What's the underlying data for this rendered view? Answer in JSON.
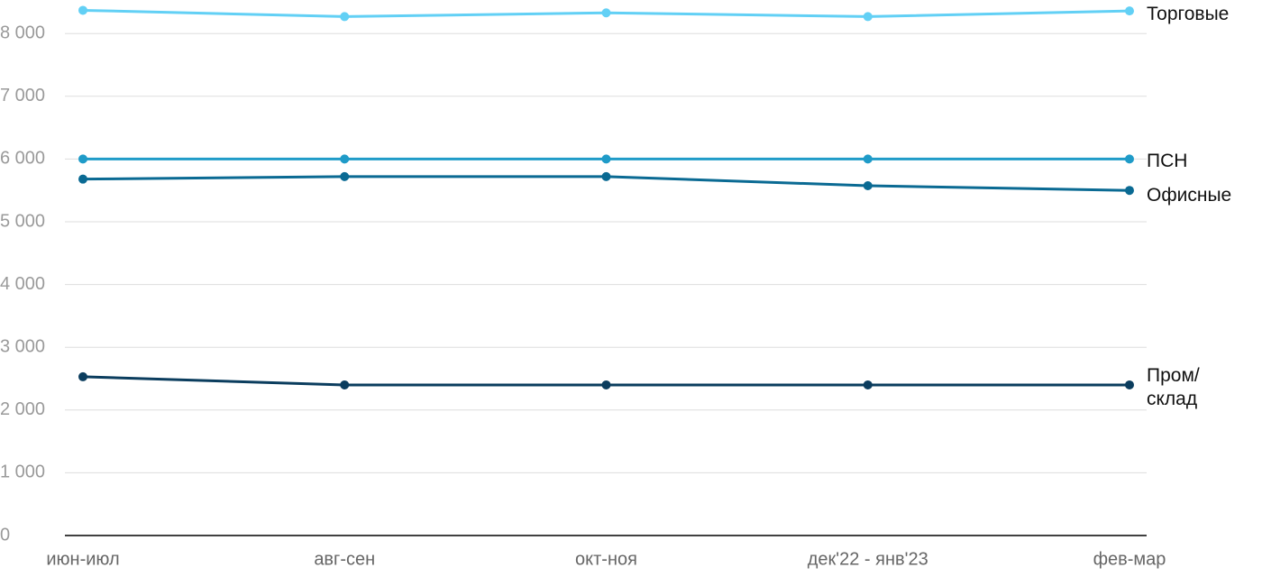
{
  "chart_data": {
    "type": "line",
    "categories": [
      "июн-июл",
      "авг-сен",
      "окт-ноя",
      "дек'22 - янв'23",
      "фев-мар"
    ],
    "series": [
      {
        "name": "Торговые",
        "color": "#62d0f5",
        "values": [
          8370,
          8270,
          8330,
          8270,
          8360
        ]
      },
      {
        "name": "ПСН",
        "color": "#1f9bc8",
        "values": [
          6000,
          6000,
          6000,
          6000,
          6000
        ]
      },
      {
        "name": "Офисные",
        "color": "#0a6a93",
        "values": [
          5680,
          5720,
          5720,
          5575,
          5500
        ]
      },
      {
        "name": "Пром/\nсклад",
        "color": "#0b3d5e",
        "values": [
          2530,
          2400,
          2400,
          2400,
          2400
        ]
      }
    ],
    "ylim": [
      0,
      8500
    ],
    "yticks": [
      0,
      {
        "value": 1000,
        "label": "1 000"
      },
      {
        "value": 2000,
        "label": "2 000"
      },
      {
        "value": 3000,
        "label": "3 000"
      },
      {
        "value": 4000,
        "label": "4 000"
      },
      {
        "value": 5000,
        "label": "5 000"
      },
      {
        "value": 6000,
        "label": "6 000"
      },
      {
        "value": 7000,
        "label": "7 000"
      },
      {
        "value": 8000,
        "label": "8 000"
      }
    ],
    "grid": true
  }
}
